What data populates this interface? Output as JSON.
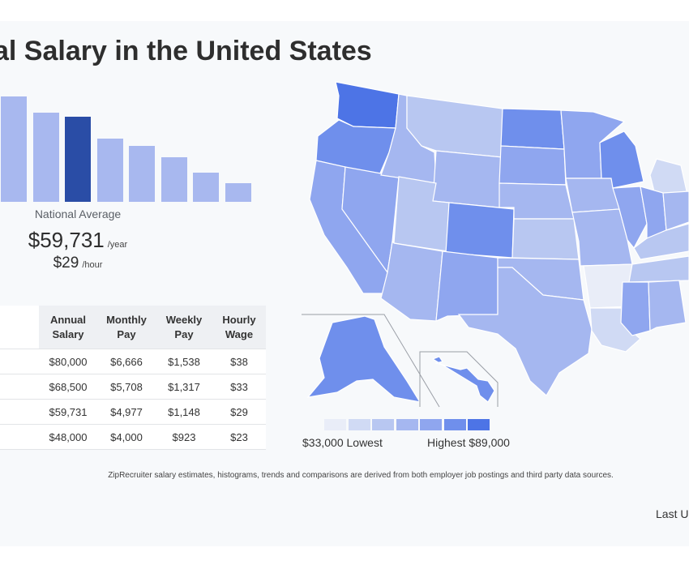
{
  "title": "al Salary in the United States",
  "colors": {
    "bar_regular": "#a8b8ef",
    "bar_highlight": "#2a4da6",
    "scale": [
      "#e9edf8",
      "#d0daf4",
      "#b8c7f1",
      "#a5b7f0",
      "#8fa6ef",
      "#6f8fec",
      "#4d74e6"
    ]
  },
  "histogram": {
    "bars": [
      {
        "value": 0.95,
        "highlight": false
      },
      {
        "value": 0.8,
        "highlight": false
      },
      {
        "value": 0.77,
        "highlight": true
      },
      {
        "value": 0.57,
        "highlight": false
      },
      {
        "value": 0.5,
        "highlight": false
      },
      {
        "value": 0.4,
        "highlight": false
      },
      {
        "value": 0.26,
        "highlight": false
      },
      {
        "value": 0.17,
        "highlight": false
      }
    ],
    "national_average_label": "National Average",
    "annual": "$59,731",
    "annual_unit": "/year",
    "hourly": "$29",
    "hourly_unit": "/hour"
  },
  "table": {
    "headers": [
      "",
      "Annual Salary",
      "Monthly Pay",
      "Weekly Pay",
      "Hourly Wage"
    ],
    "rows": [
      [
        "",
        "$80,000",
        "$6,666",
        "$1,538",
        "$38"
      ],
      [
        "",
        "$68,500",
        "$5,708",
        "$1,317",
        "$33"
      ],
      [
        "",
        "$59,731",
        "$4,977",
        "$1,148",
        "$29"
      ],
      [
        "",
        "$48,000",
        "$4,000",
        "$923",
        "$23"
      ]
    ]
  },
  "map": {
    "states": [
      {
        "name": "WA",
        "level": 6
      },
      {
        "name": "OR",
        "level": 5
      },
      {
        "name": "CA",
        "level": 4
      },
      {
        "name": "NV",
        "level": 4
      },
      {
        "name": "ID",
        "level": 3
      },
      {
        "name": "MT",
        "level": 2
      },
      {
        "name": "WY",
        "level": 3
      },
      {
        "name": "UT",
        "level": 2
      },
      {
        "name": "AZ",
        "level": 3
      },
      {
        "name": "CO",
        "level": 5
      },
      {
        "name": "NM",
        "level": 4
      },
      {
        "name": "ND",
        "level": 5
      },
      {
        "name": "SD",
        "level": 4
      },
      {
        "name": "NE",
        "level": 3
      },
      {
        "name": "KS",
        "level": 2
      },
      {
        "name": "OK",
        "level": 3
      },
      {
        "name": "TX",
        "level": 3
      },
      {
        "name": "MN",
        "level": 4
      },
      {
        "name": "IA",
        "level": 3
      },
      {
        "name": "MO",
        "level": 3
      },
      {
        "name": "AR",
        "level": 0
      },
      {
        "name": "LA",
        "level": 1
      },
      {
        "name": "WI",
        "level": 5
      },
      {
        "name": "IL",
        "level": 4
      },
      {
        "name": "MI",
        "level": 1
      },
      {
        "name": "IN",
        "level": 4
      },
      {
        "name": "KY",
        "level": 2
      },
      {
        "name": "TN",
        "level": 2
      },
      {
        "name": "MS",
        "level": 4
      },
      {
        "name": "AL",
        "level": 3
      },
      {
        "name": "OH",
        "level": 3
      },
      {
        "name": "AK",
        "level": 5
      },
      {
        "name": "HI",
        "level": 5
      }
    ]
  },
  "legend": {
    "low": "$33,000 Lowest",
    "high": "Highest $89,000"
  },
  "footnote": "ZipRecruiter salary estimates, histograms, trends and comparisons are derived from both employer job postings and third party data sources.",
  "last_updated": "Last U"
}
